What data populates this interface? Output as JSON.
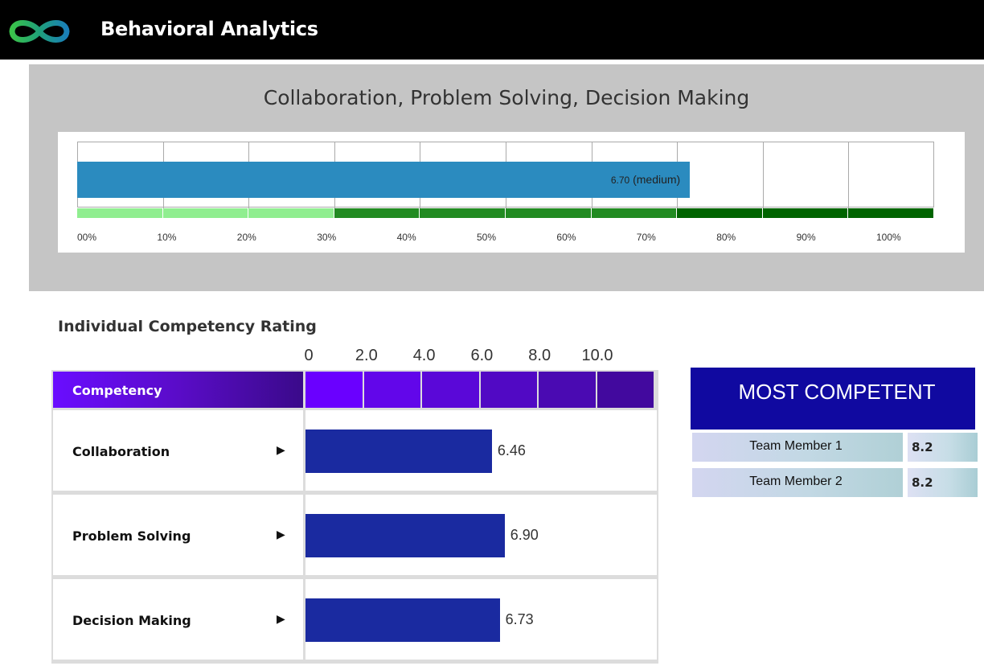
{
  "header": {
    "app_title": "Behavioral Analytics",
    "logo_icon": "infinity-logo-icon"
  },
  "gauge": {
    "title": "Collaboration, Problem Solving, Decision Making",
    "value_text": "6.70",
    "level_text": "(medium)",
    "value_fraction": 0.67,
    "tick_labels": [
      "00%",
      "10%",
      "20%",
      "30%",
      "40%",
      "50%",
      "60%",
      "70%",
      "80%",
      "90%",
      "100%"
    ],
    "band_colors": {
      "low": "#90ee90",
      "medium": "#228b22",
      "high": "#006400"
    },
    "bar_color": "#2b8bbf"
  },
  "competency": {
    "section_title": "Individual Competency Rating",
    "header_label": "Competency",
    "axis_labels": [
      "0",
      "2.0",
      "4.0",
      "6.0",
      "8.0",
      "10.0"
    ],
    "row_arrow_icon": "triangle-right-icon",
    "bar_color": "#1a2aa0"
  },
  "chart_data": {
    "type": "bar",
    "categories": [
      "Collaboration",
      "Problem Solving",
      "Decision Making"
    ],
    "values": [
      6.46,
      6.9,
      6.73
    ],
    "value_labels": [
      "6.46",
      "6.90",
      "6.73"
    ],
    "xlim": [
      0,
      12
    ],
    "tick_labels": [
      "0",
      "2.0",
      "4.0",
      "6.0",
      "8.0",
      "10.0"
    ],
    "orientation": "horizontal"
  },
  "most_competent": {
    "title": "MOST COMPETENT",
    "members": [
      {
        "name": "Team Member 1",
        "score": "8.2"
      },
      {
        "name": "Team Member 2",
        "score": "8.2"
      }
    ]
  }
}
